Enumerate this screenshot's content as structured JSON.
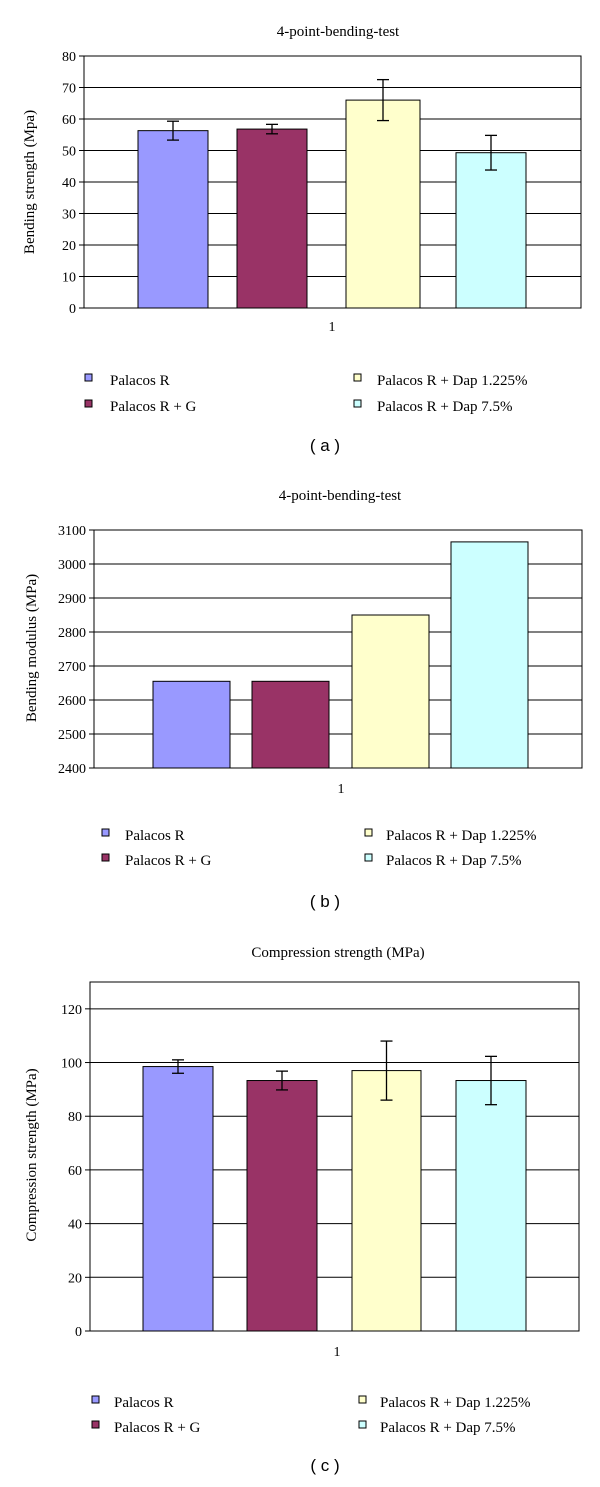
{
  "colors": {
    "Palacos R": "#9999ff",
    "Palacos R + G": "#993366",
    "Palacos R + Dap 1.225%": "#ffffcc",
    "Palacos R + Dap 7.5%": "#ccffff"
  },
  "chart_data": [
    {
      "type": "bar",
      "panel_label": "( a )",
      "title": "4-point-bending-test",
      "ylabel": "Bending strength (Mpa)",
      "xlabel": "",
      "categories": [
        "1"
      ],
      "ylim": [
        0,
        80
      ],
      "yticks": [
        0,
        10,
        20,
        30,
        40,
        50,
        60,
        70,
        80
      ],
      "grid": true,
      "legend": "bottom",
      "series": [
        {
          "name": "Palacos R",
          "values": [
            56.3
          ],
          "error": [
            3.0
          ]
        },
        {
          "name": "Palacos R + G",
          "values": [
            56.8
          ],
          "error": [
            1.5
          ]
        },
        {
          "name": "Palacos R + Dap 1.225%",
          "values": [
            66.0
          ],
          "error": [
            6.5
          ]
        },
        {
          "name": "Palacos R + Dap 7.5%",
          "values": [
            49.3
          ],
          "error": [
            5.5
          ]
        }
      ]
    },
    {
      "type": "bar",
      "panel_label": "( b )",
      "title": "4-point-bending-test",
      "ylabel": "Bending modulus (MPa)",
      "xlabel": "",
      "categories": [
        "1"
      ],
      "ylim": [
        2400,
        3100
      ],
      "yticks": [
        2400,
        2500,
        2600,
        2700,
        2800,
        2900,
        3000,
        3100
      ],
      "grid": true,
      "legend": "bottom",
      "series": [
        {
          "name": "Palacos R",
          "values": [
            2655
          ]
        },
        {
          "name": "Palacos R + G",
          "values": [
            2655
          ]
        },
        {
          "name": "Palacos R + Dap 1.225%",
          "values": [
            2850
          ]
        },
        {
          "name": "Palacos R + Dap 7.5%",
          "values": [
            3065
          ]
        }
      ]
    },
    {
      "type": "bar",
      "panel_label": "( c )",
      "title": "Compression strength (MPa)",
      "ylabel": "Compression strength (MPa)",
      "xlabel": "",
      "categories": [
        "1"
      ],
      "ylim": [
        0,
        130
      ],
      "yticks": [
        0,
        20,
        40,
        60,
        80,
        100,
        120
      ],
      "grid": true,
      "legend": "bottom",
      "series": [
        {
          "name": "Palacos R",
          "values": [
            98.5
          ],
          "error": [
            2.5
          ]
        },
        {
          "name": "Palacos R + G",
          "values": [
            93.3
          ],
          "error": [
            3.5
          ]
        },
        {
          "name": "Palacos R + Dap 1.225%",
          "values": [
            97.0
          ],
          "error": [
            11.0
          ]
        },
        {
          "name": "Palacos R + Dap 7.5%",
          "values": [
            93.3
          ],
          "error": [
            9.0
          ]
        }
      ]
    }
  ]
}
